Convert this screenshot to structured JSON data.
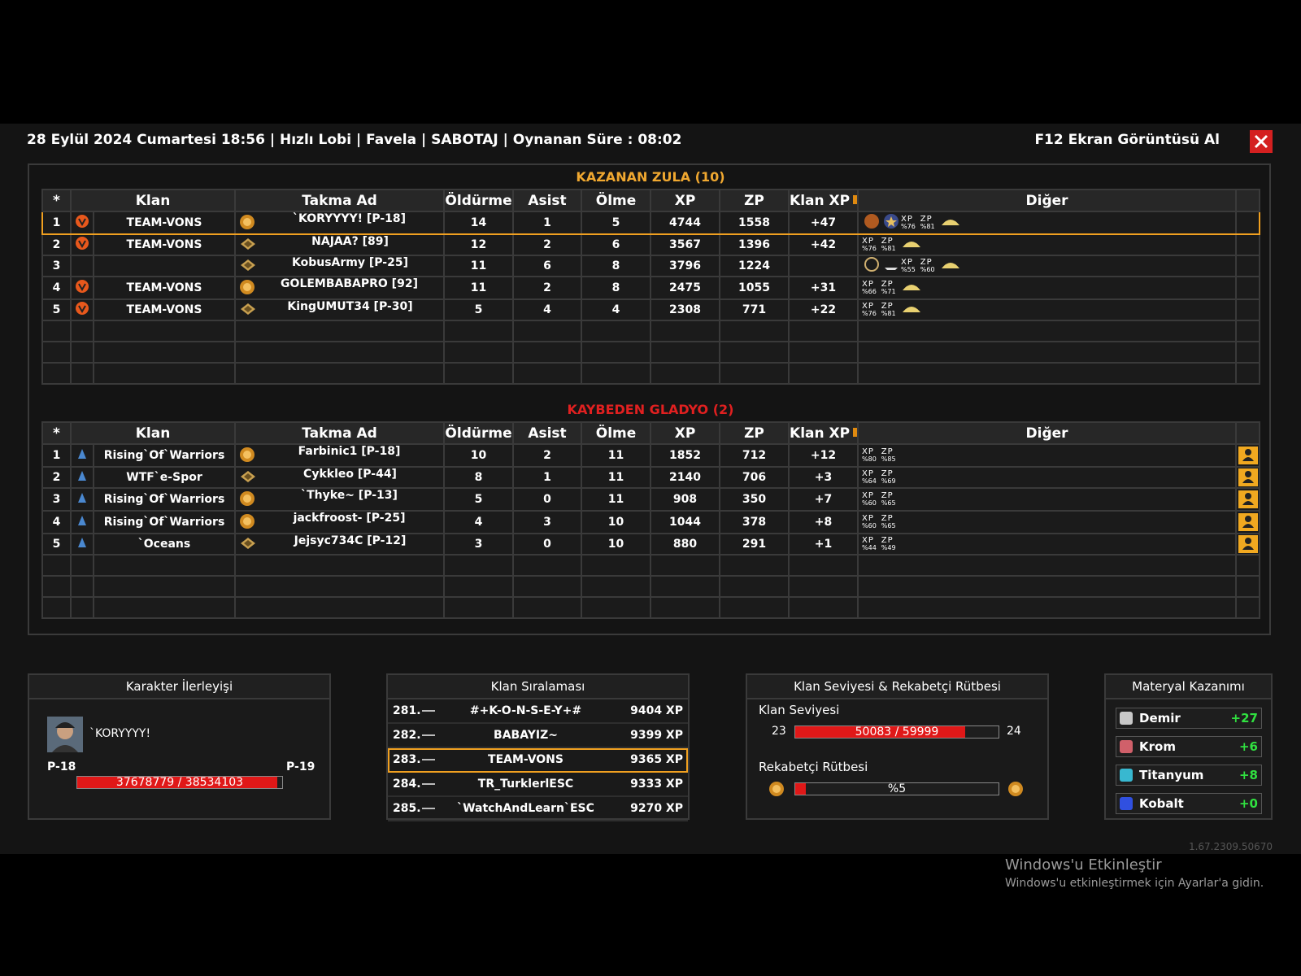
{
  "header": {
    "title": "28 Eylül 2024 Cumartesi 18:56 | Hızlı Lobi | Favela | SABOTAJ | Oynanan Süre : 08:02",
    "screenshot_button": "F12 Ekran Görüntüsü Al"
  },
  "columns": [
    "*",
    "Klan",
    "Takma Ad",
    "Öldürme",
    "Asist",
    "Ölme",
    "XP",
    "ZP",
    "Klan XP",
    "Diğer"
  ],
  "bonus_labels": [
    "XP",
    "ZP"
  ],
  "teams": [
    {
      "title": "KAZANAN ZULA (10)",
      "highlight_row": 0,
      "rows": [
        {
          "rank": 1,
          "clan": "TEAM-VONS",
          "nick": "`KORYYYY! [P-18]",
          "kills": 14,
          "assists": 1,
          "deaths": 5,
          "xp": 4744,
          "zp": 1558,
          "clan_xp": "+47",
          "bonus": [
            "%76",
            "%81"
          ]
        },
        {
          "rank": 2,
          "clan": "TEAM-VONS",
          "nick": "NAJAA? [89]",
          "kills": 12,
          "assists": 2,
          "deaths": 6,
          "xp": 3567,
          "zp": 1396,
          "clan_xp": "+42",
          "bonus": [
            "%76",
            "%81"
          ]
        },
        {
          "rank": 3,
          "clan": null,
          "nick": "KobusArmy [P-25]",
          "kills": 11,
          "assists": 6,
          "deaths": 8,
          "xp": 3796,
          "zp": 1224,
          "clan_xp": null,
          "bonus": [
            "%55",
            "%60"
          ]
        },
        {
          "rank": 4,
          "clan": "TEAM-VONS",
          "nick": "GOLEMBABAPRO [92]",
          "kills": 11,
          "assists": 2,
          "deaths": 8,
          "xp": 2475,
          "zp": 1055,
          "clan_xp": "+31",
          "bonus": [
            "%66",
            "%71"
          ]
        },
        {
          "rank": 5,
          "clan": "TEAM-VONS",
          "nick": "KingUMUT34 [P-30]",
          "kills": 5,
          "assists": 4,
          "deaths": 4,
          "xp": 2308,
          "zp": 771,
          "clan_xp": "+22",
          "bonus": [
            "%76",
            "%81"
          ]
        }
      ]
    },
    {
      "title": "KAYBEDEN GLADYO (2)",
      "highlight_row": null,
      "rows": [
        {
          "rank": 1,
          "clan": "Rising`Of`Warriors",
          "nick": "Farbinic1 [P-18]",
          "kills": 10,
          "assists": 2,
          "deaths": 11,
          "xp": 1852,
          "zp": 712,
          "clan_xp": "+12",
          "bonus": [
            "%80",
            "%85"
          ]
        },
        {
          "rank": 2,
          "clan": "WTF`e-Spor",
          "nick": "Cykkleo [P-44]",
          "kills": 8,
          "assists": 1,
          "deaths": 11,
          "xp": 2140,
          "zp": 706,
          "clan_xp": "+3",
          "bonus": [
            "%64",
            "%69"
          ]
        },
        {
          "rank": 3,
          "clan": "Rising`Of`Warriors",
          "nick": "`Thyke~ [P-13]",
          "kills": 5,
          "assists": 0,
          "deaths": 11,
          "xp": 908,
          "zp": 350,
          "clan_xp": "+7",
          "bonus": [
            "%60",
            "%65"
          ]
        },
        {
          "rank": 4,
          "clan": "Rising`Of`Warriors",
          "nick": "jackfroost- [P-25]",
          "kills": 4,
          "assists": 3,
          "deaths": 10,
          "xp": 1044,
          "zp": 378,
          "clan_xp": "+8",
          "bonus": [
            "%60",
            "%65"
          ]
        },
        {
          "rank": 5,
          "clan": "`Oceans",
          "nick": "Jejsyc734C [P-12]",
          "kills": 3,
          "assists": 0,
          "deaths": 10,
          "xp": 880,
          "zp": 291,
          "clan_xp": "+1",
          "bonus": [
            "%44",
            "%49"
          ]
        }
      ]
    }
  ],
  "character": {
    "title": "Karakter İlerleyişi",
    "name": "`KORYYYY!",
    "level_from": "P-18",
    "level_to": "P-19",
    "progress": {
      "label": "37678779 / 38534103",
      "current": 37678779,
      "max": 38534103
    }
  },
  "clan_ranking": {
    "title": "Klan Sıralaması",
    "highlight_row": 2,
    "rows": [
      {
        "rank": "281.",
        "name": "#+K-O-N-S-E-Y+#",
        "xp": "9404 XP"
      },
      {
        "rank": "282.",
        "name": "BABAYIZ~",
        "xp": "9399 XP"
      },
      {
        "rank": "283.",
        "name": "TEAM-VONS",
        "xp": "9365 XP"
      },
      {
        "rank": "284.",
        "name": "TR_TurklerlESC",
        "xp": "9333 XP"
      },
      {
        "rank": "285.",
        "name": "`WatchAndLearn`ESC",
        "xp": "9270 XP"
      }
    ]
  },
  "clan_level": {
    "title": "Klan Seviyesi & Rekabetçi Rütbesi",
    "level_title": "Klan Seviyesi",
    "level_from": 23,
    "level_to": 24,
    "progress": {
      "label": "50083 / 59999",
      "current": 50083,
      "max": 59999
    },
    "rank_title": "Rekabetçi Rütbesi",
    "rank_progress": {
      "value": 5,
      "label": "%5"
    }
  },
  "materials": {
    "title": "Materyal Kazanımı",
    "items": [
      {
        "name": "Demir",
        "gain": "+27",
        "color": "#c8c8c8"
      },
      {
        "name": "Krom",
        "gain": "+6",
        "color": "#d0606a"
      },
      {
        "name": "Titanyum",
        "gain": "+8",
        "color": "#38b8d0"
      },
      {
        "name": "Kobalt",
        "gain": "+0",
        "color": "#3050e0"
      }
    ]
  },
  "version": "1.67.2309.50670",
  "watermark": {
    "title": "Windows'u Etkinleştir",
    "subtitle": "Windows'u etkinleştirmek için Ayarlar'a gidin."
  }
}
